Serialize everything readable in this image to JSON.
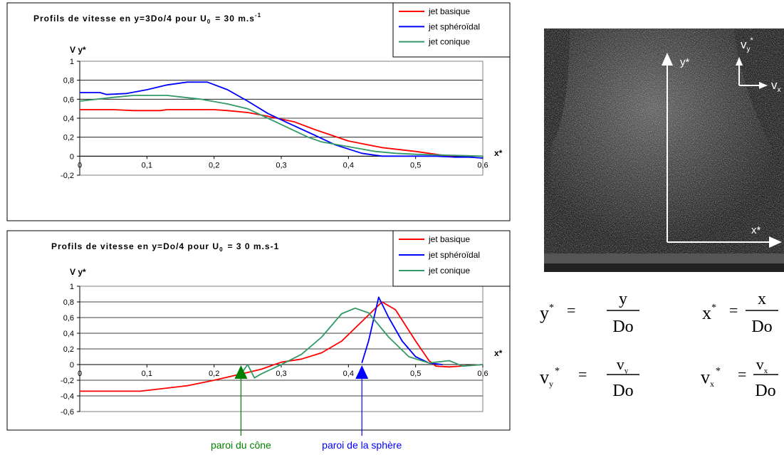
{
  "chart_data": [
    {
      "type": "line",
      "title": "Profils de vitesse en y=3Do/4 pour U",
      "title_sub": "0",
      "title_value": "= 30 m.s",
      "title_sup": "-1",
      "ylabel": "V y*",
      "xlabel": "x*",
      "xlim": [
        0,
        0.6
      ],
      "ylim": [
        -0.2,
        1
      ],
      "x_ticks": [
        "0",
        "0,1",
        "0,2",
        "0,3",
        "0,4",
        "0,5",
        "0,6"
      ],
      "y_ticks": [
        "1",
        "0,8",
        "0,6",
        "0,4",
        "0,2",
        "0",
        "-0,2"
      ],
      "grid": "horizontal",
      "legend_position": "top-right",
      "series": [
        {
          "name": "jet basique",
          "color": "#ff0000",
          "points": [
            [
              0,
              0.49
            ],
            [
              0.05,
              0.49
            ],
            [
              0.08,
              0.48
            ],
            [
              0.12,
              0.48
            ],
            [
              0.13,
              0.49
            ],
            [
              0.2,
              0.49
            ],
            [
              0.22,
              0.48
            ],
            [
              0.25,
              0.46
            ],
            [
              0.28,
              0.42
            ],
            [
              0.32,
              0.36
            ],
            [
              0.35,
              0.28
            ],
            [
              0.4,
              0.16
            ],
            [
              0.45,
              0.09
            ],
            [
              0.5,
              0.05
            ],
            [
              0.53,
              0.02
            ],
            [
              0.55,
              0.0
            ],
            [
              0.56,
              -0.01
            ]
          ]
        },
        {
          "name": "jet sphéroïdal",
          "color": "#0000ff",
          "points": [
            [
              0,
              0.67
            ],
            [
              0.03,
              0.67
            ],
            [
              0.04,
              0.65
            ],
            [
              0.07,
              0.66
            ],
            [
              0.1,
              0.7
            ],
            [
              0.13,
              0.75
            ],
            [
              0.16,
              0.78
            ],
            [
              0.19,
              0.78
            ],
            [
              0.22,
              0.7
            ],
            [
              0.25,
              0.58
            ],
            [
              0.28,
              0.45
            ],
            [
              0.31,
              0.35
            ],
            [
              0.35,
              0.22
            ],
            [
              0.38,
              0.12
            ],
            [
              0.42,
              0.03
            ],
            [
              0.45,
              0.0
            ],
            [
              0.5,
              0.0
            ],
            [
              0.53,
              0.0
            ],
            [
              0.56,
              -0.01
            ],
            [
              0.58,
              -0.01
            ],
            [
              0.6,
              -0.02
            ]
          ]
        },
        {
          "name": "jet conique",
          "color": "#339966",
          "points": [
            [
              0,
              0.58
            ],
            [
              0.05,
              0.62
            ],
            [
              0.08,
              0.64
            ],
            [
              0.13,
              0.64
            ],
            [
              0.18,
              0.6
            ],
            [
              0.22,
              0.55
            ],
            [
              0.25,
              0.5
            ],
            [
              0.28,
              0.4
            ],
            [
              0.31,
              0.3
            ],
            [
              0.34,
              0.2
            ],
            [
              0.36,
              0.15
            ],
            [
              0.4,
              0.1
            ],
            [
              0.44,
              0.05
            ],
            [
              0.47,
              0.03
            ],
            [
              0.5,
              0.02
            ],
            [
              0.55,
              0.01
            ],
            [
              0.6,
              0.0
            ]
          ]
        }
      ]
    },
    {
      "type": "line",
      "title": "Profils de vitesse en y=Do/4 pour U",
      "title_sub": "0",
      "title_value": "= 3 0 m.s-1",
      "ylabel": "V y*",
      "xlabel": "x*",
      "xlim": [
        0,
        0.6
      ],
      "ylim": [
        -0.6,
        1
      ],
      "x_ticks": [
        "0",
        "0,1",
        "0,2",
        "0,3",
        "0,4",
        "0,5",
        "0,6"
      ],
      "y_ticks": [
        "1",
        "0,8",
        "0,6",
        "0,4",
        "0,2",
        "0",
        "-0,2",
        "-0,4",
        "-0,6"
      ],
      "grid": "horizontal",
      "legend_position": "top-right",
      "series": [
        {
          "name": "jet basique",
          "color": "#ff0000",
          "points": [
            [
              0,
              -0.34
            ],
            [
              0.09,
              -0.34
            ],
            [
              0.12,
              -0.31
            ],
            [
              0.16,
              -0.27
            ],
            [
              0.2,
              -0.2
            ],
            [
              0.24,
              -0.12
            ],
            [
              0.27,
              -0.06
            ],
            [
              0.3,
              0.03
            ],
            [
              0.33,
              0.07
            ],
            [
              0.36,
              0.15
            ],
            [
              0.39,
              0.3
            ],
            [
              0.42,
              0.55
            ],
            [
              0.45,
              0.8
            ],
            [
              0.47,
              0.7
            ],
            [
              0.5,
              0.3
            ],
            [
              0.52,
              0.05
            ],
            [
              0.53,
              -0.02
            ],
            [
              0.55,
              -0.03
            ],
            [
              0.6,
              0.0
            ]
          ]
        },
        {
          "name": "jet sphéroïdal",
          "color": "#0000ff",
          "points": [
            [
              0.42,
              0.02
            ],
            [
              0.43,
              0.3
            ],
            [
              0.445,
              0.86
            ],
            [
              0.46,
              0.6
            ],
            [
              0.48,
              0.3
            ],
            [
              0.5,
              0.1
            ],
            [
              0.52,
              0.02
            ],
            [
              0.54,
              0.0
            ]
          ]
        },
        {
          "name": "jet conique",
          "color": "#339966",
          "points": [
            [
              0.24,
              -0.12
            ],
            [
              0.25,
              0.0
            ],
            [
              0.26,
              -0.17
            ],
            [
              0.27,
              -0.12
            ],
            [
              0.3,
              0.0
            ],
            [
              0.33,
              0.13
            ],
            [
              0.36,
              0.35
            ],
            [
              0.39,
              0.65
            ],
            [
              0.41,
              0.72
            ],
            [
              0.43,
              0.66
            ],
            [
              0.46,
              0.35
            ],
            [
              0.49,
              0.1
            ],
            [
              0.52,
              0.02
            ],
            [
              0.55,
              0.05
            ],
            [
              0.57,
              -0.02
            ],
            [
              0.6,
              0.0
            ]
          ]
        }
      ]
    }
  ],
  "markers": {
    "cone": {
      "label": "paroi du cône",
      "color": "#007f00",
      "x": 0.24
    },
    "sphere": {
      "label": "paroi de la sphère",
      "color": "#0000ff",
      "x": 0.42
    }
  },
  "photo": {
    "label_y": "y*",
    "label_x": "x*",
    "label_vy": "v",
    "label_vy_sub": "y",
    "label_vx": "v",
    "label_vx_sub": "x",
    "star": "*"
  },
  "formulas": {
    "y_num": "y",
    "y_den": "Do",
    "y_lhs": "y",
    "x_num": "x",
    "x_den": "Do",
    "x_lhs": "x",
    "vy_num": "v",
    "vy_sub": "y",
    "vy_den": "Do",
    "vy_lhs": "v",
    "vx_num": "v",
    "vx_sub": "x",
    "vx_den": "Do",
    "vx_lhs": "v",
    "star": "*",
    "equals": "="
  }
}
